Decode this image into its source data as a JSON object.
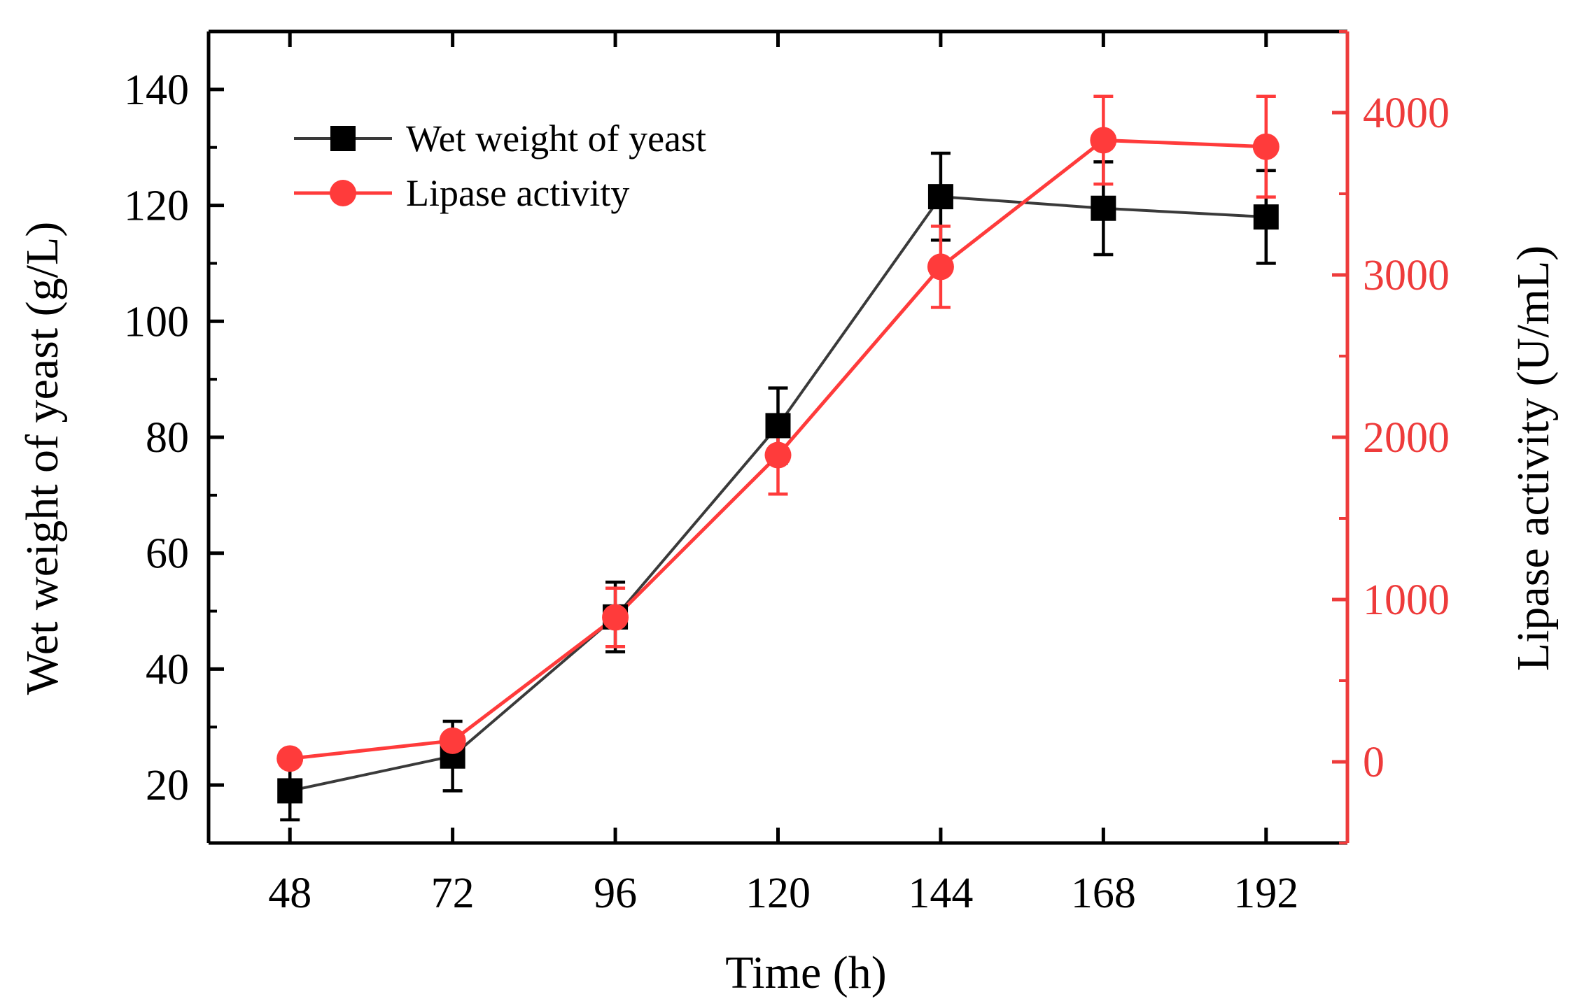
{
  "chart_data": {
    "type": "line",
    "title": "",
    "xlabel": "Time (h)",
    "ylabel_left": "Wet weight of yeast (g/L)",
    "ylabel_right": "Lipase activity (U/mL)",
    "x": [
      48,
      72,
      96,
      120,
      144,
      168,
      192
    ],
    "xticks": [
      "48",
      "72",
      "96",
      "120",
      "144",
      "168",
      "192"
    ],
    "xlim": [
      36,
      204
    ],
    "ylim_left": [
      10,
      150
    ],
    "ylim_right": [
      -500,
      4500
    ],
    "yticks_left": [
      "20",
      "40",
      "60",
      "80",
      "100",
      "120",
      "140"
    ],
    "yticks_right": [
      "0",
      "1000",
      "2000",
      "3000",
      "4000"
    ],
    "grid": false,
    "legend_position": "top-left",
    "colors": {
      "left_axis": "#000000",
      "right_axis": "#ee3b3b",
      "series1": "#3a3a3a",
      "series1_marker": "#000000",
      "series2": "#ff3b3b"
    },
    "series": [
      {
        "name": "Wet weight of yeast",
        "axis": "left",
        "marker": "square",
        "values": [
          19,
          25,
          49,
          82,
          121.5,
          119.5,
          118
        ],
        "errors": [
          5,
          6,
          6,
          6.5,
          7.5,
          8,
          8
        ]
      },
      {
        "name": "Lipase activity",
        "axis": "right",
        "marker": "circle",
        "values": [
          20,
          130,
          890,
          1890,
          3050,
          3830,
          3790
        ],
        "errors": [
          0,
          0,
          180,
          240,
          250,
          270,
          310
        ]
      }
    ]
  }
}
